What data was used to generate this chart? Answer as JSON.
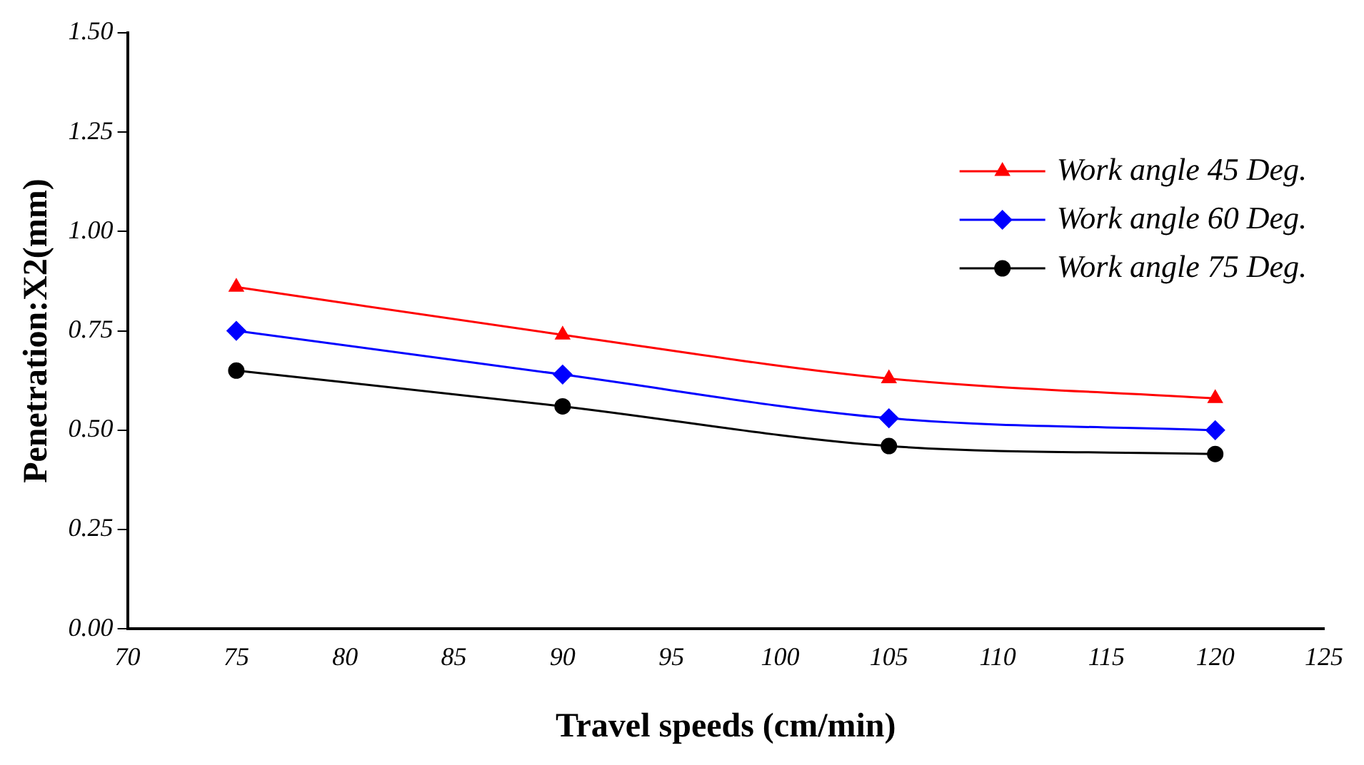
{
  "chart_data": {
    "type": "line",
    "xlabel": "Travel speeds (cm/min)",
    "ylabel": "Penetration:X2(mm)",
    "x": [
      75,
      90,
      105,
      120
    ],
    "series": [
      {
        "name": "Work angle 45 Deg.",
        "color": "#ff0000",
        "marker": "triangle",
        "values": [
          0.86,
          0.74,
          0.63,
          0.58
        ]
      },
      {
        "name": "Work angle 60 Deg.",
        "color": "#0000ff",
        "marker": "diamond",
        "values": [
          0.75,
          0.64,
          0.53,
          0.5
        ]
      },
      {
        "name": "Work angle 75 Deg.",
        "color": "#000000",
        "marker": "circle",
        "values": [
          0.65,
          0.56,
          0.46,
          0.44
        ]
      }
    ],
    "xlim": [
      70,
      125
    ],
    "xticks": [
      70,
      75,
      80,
      85,
      90,
      95,
      100,
      105,
      110,
      115,
      120,
      125
    ],
    "ylim": [
      0,
      1.5
    ],
    "yticks": [
      {
        "value": 0,
        "label": "0.00"
      },
      {
        "value": 0.25,
        "label": "0.25"
      },
      {
        "value": 0.5,
        "label": "0.50"
      },
      {
        "value": 0.75,
        "label": "0.75"
      },
      {
        "value": 1,
        "label": "1.00"
      },
      {
        "value": 1.25,
        "label": "1.25"
      },
      {
        "value": 1.5,
        "label": "1.50"
      }
    ],
    "grid": false,
    "legend": "top right"
  }
}
